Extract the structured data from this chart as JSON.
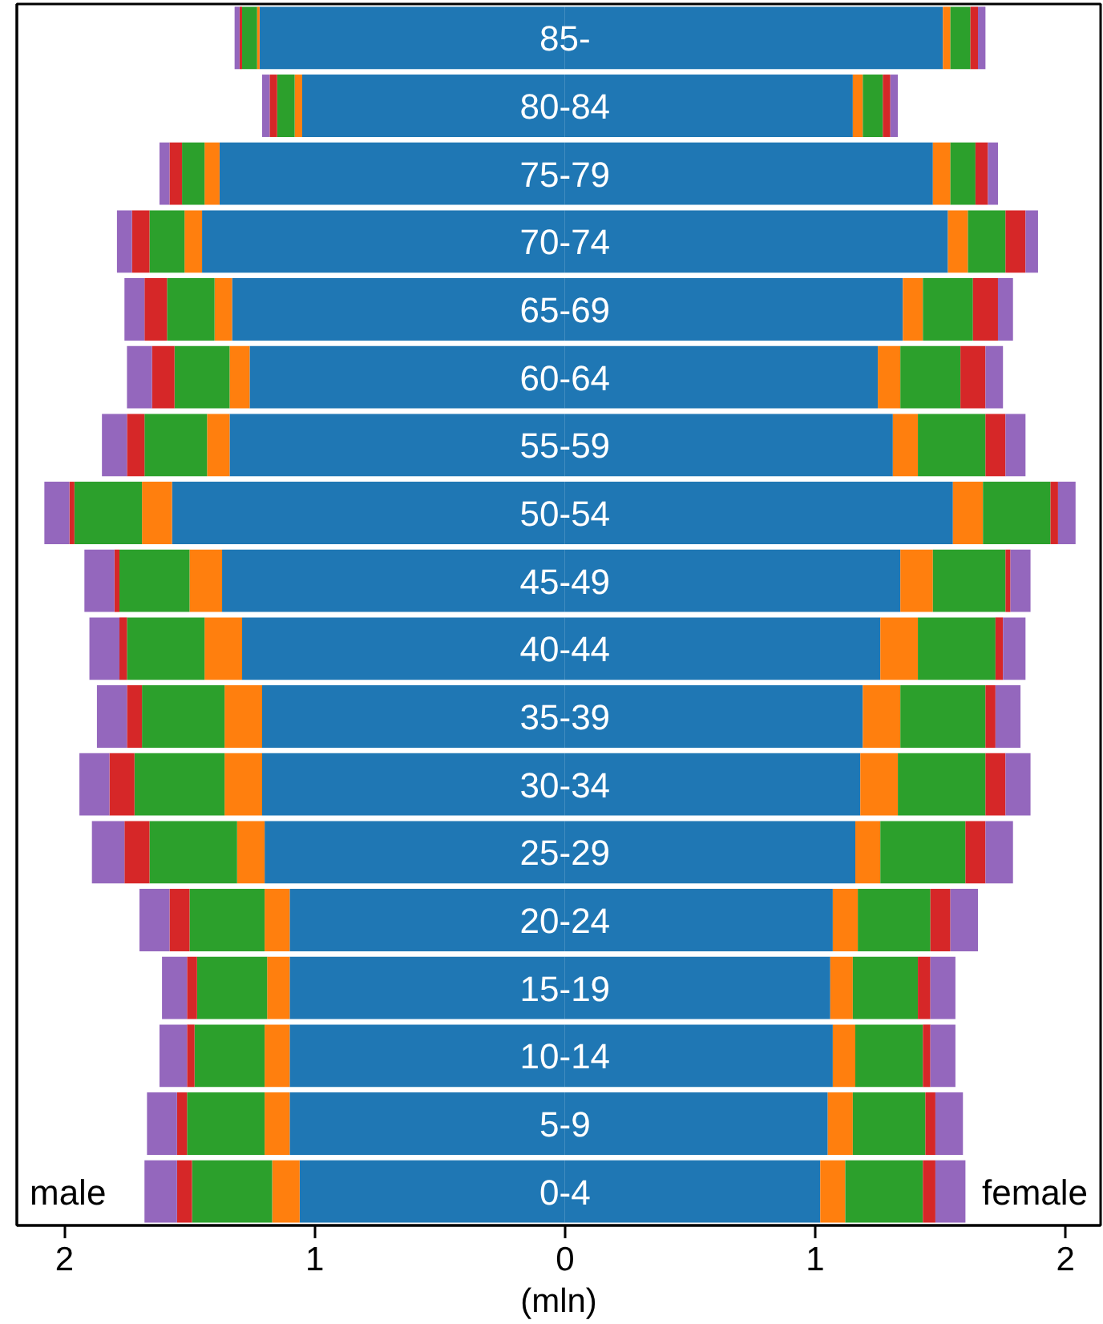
{
  "chart_data": {
    "type": "bar",
    "orientation": "horizontal",
    "stacked": true,
    "xlabel": "(mln)",
    "categories": [
      "85-",
      "80-84",
      "75-79",
      "70-74",
      "65-69",
      "60-64",
      "55-59",
      "50-54",
      "45-49",
      "40-44",
      "35-39",
      "30-34",
      "25-29",
      "20-24",
      "15-19",
      "10-14",
      "5-9",
      "0-4"
    ],
    "series": [
      {
        "color": "#1f77b4",
        "values": [
          -1.22,
          -1.05,
          -1.38,
          -1.45,
          -1.33,
          -1.26,
          -1.34,
          -1.57,
          -1.37,
          -1.29,
          -1.21,
          -1.21,
          -1.2,
          -1.1,
          -1.1,
          -1.1,
          -1.1,
          -1.06
        ]
      },
      {
        "color": "#ff7f0e",
        "values": [
          -0.01,
          -0.03,
          -0.06,
          -0.07,
          -0.07,
          -0.08,
          -0.09,
          -0.12,
          -0.13,
          -0.15,
          -0.15,
          -0.15,
          -0.11,
          -0.1,
          -0.09,
          -0.1,
          -0.1,
          -0.11
        ]
      },
      {
        "color": "#2ca02c",
        "values": [
          -0.06,
          -0.07,
          -0.09,
          -0.14,
          -0.19,
          -0.22,
          -0.25,
          -0.27,
          -0.28,
          -0.31,
          -0.33,
          -0.36,
          -0.35,
          -0.3,
          -0.28,
          -0.28,
          -0.31,
          -0.32
        ]
      },
      {
        "color": "#d62728",
        "values": [
          -0.01,
          -0.03,
          -0.05,
          -0.07,
          -0.09,
          -0.09,
          -0.07,
          -0.02,
          -0.02,
          -0.03,
          -0.06,
          -0.1,
          -0.1,
          -0.08,
          -0.04,
          -0.03,
          -0.04,
          -0.06
        ]
      },
      {
        "color": "#9467bd",
        "values": [
          -0.02,
          -0.03,
          -0.04,
          -0.06,
          -0.08,
          -0.1,
          -0.1,
          -0.1,
          -0.12,
          -0.12,
          -0.12,
          -0.12,
          -0.13,
          -0.12,
          -0.1,
          -0.11,
          -0.12,
          -0.13
        ]
      },
      {
        "color": "#1f77b4",
        "values": [
          1.51,
          1.15,
          1.47,
          1.53,
          1.35,
          1.25,
          1.31,
          1.55,
          1.34,
          1.26,
          1.19,
          1.18,
          1.16,
          1.07,
          1.06,
          1.07,
          1.05,
          1.02
        ]
      },
      {
        "color": "#ff7f0e",
        "values": [
          0.03,
          0.04,
          0.07,
          0.08,
          0.08,
          0.09,
          0.1,
          0.12,
          0.13,
          0.15,
          0.15,
          0.15,
          0.1,
          0.1,
          0.09,
          0.09,
          0.1,
          0.1
        ]
      },
      {
        "color": "#2ca02c",
        "values": [
          0.08,
          0.08,
          0.1,
          0.15,
          0.2,
          0.24,
          0.27,
          0.27,
          0.29,
          0.31,
          0.34,
          0.35,
          0.34,
          0.29,
          0.26,
          0.27,
          0.29,
          0.31
        ]
      },
      {
        "color": "#d62728",
        "values": [
          0.03,
          0.03,
          0.05,
          0.08,
          0.1,
          0.1,
          0.08,
          0.03,
          0.02,
          0.03,
          0.04,
          0.08,
          0.08,
          0.08,
          0.05,
          0.03,
          0.04,
          0.05
        ]
      },
      {
        "color": "#9467bd",
        "values": [
          0.03,
          0.03,
          0.04,
          0.05,
          0.06,
          0.07,
          0.08,
          0.07,
          0.08,
          0.09,
          0.1,
          0.1,
          0.11,
          0.11,
          0.1,
          0.1,
          0.11,
          0.12
        ]
      }
    ],
    "xlim": [
      -2.19,
      2.14
    ],
    "xticks": [
      {
        "value": -2,
        "label": "2"
      },
      {
        "value": -1,
        "label": "1"
      },
      0,
      1,
      2
    ],
    "tick_labels": "x",
    "grid": false,
    "annotations": [
      "male",
      "female"
    ]
  }
}
